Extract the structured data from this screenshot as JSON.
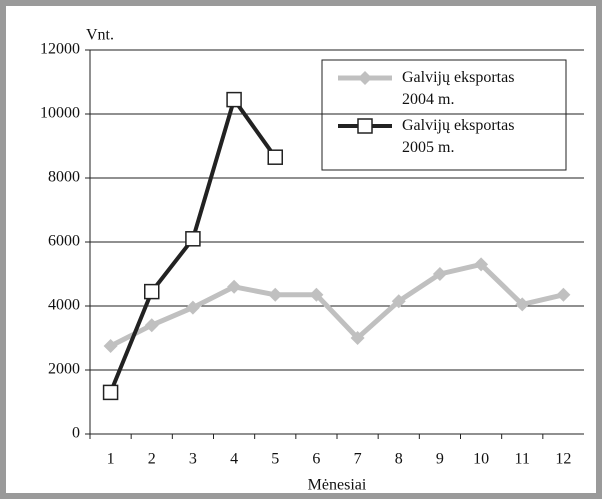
{
  "chart_data": {
    "type": "line",
    "x_label": "Mėnesiai",
    "y_label": "Vnt.",
    "categories": [
      "1",
      "2",
      "3",
      "4",
      "5",
      "6",
      "7",
      "8",
      "9",
      "10",
      "11",
      "12"
    ],
    "series": [
      {
        "name": "Galvijų eksportas 2004 m.",
        "color": "#c0c0c0",
        "marker": "diamond",
        "values": [
          2750,
          3400,
          3950,
          4600,
          4350,
          4350,
          3000,
          4150,
          5000,
          5300,
          4050,
          4350
        ]
      },
      {
        "name": "Galvijų eksportas 2005 m.",
        "color": "#222222",
        "marker": "square",
        "values": [
          1300,
          4450,
          6100,
          10450,
          8650,
          null,
          null,
          null,
          null,
          null,
          null,
          null
        ]
      }
    ],
    "ylim": [
      0,
      12000
    ],
    "yticks": [
      0,
      2000,
      4000,
      6000,
      8000,
      10000,
      12000
    ],
    "grid": true,
    "legend": "upper right"
  }
}
